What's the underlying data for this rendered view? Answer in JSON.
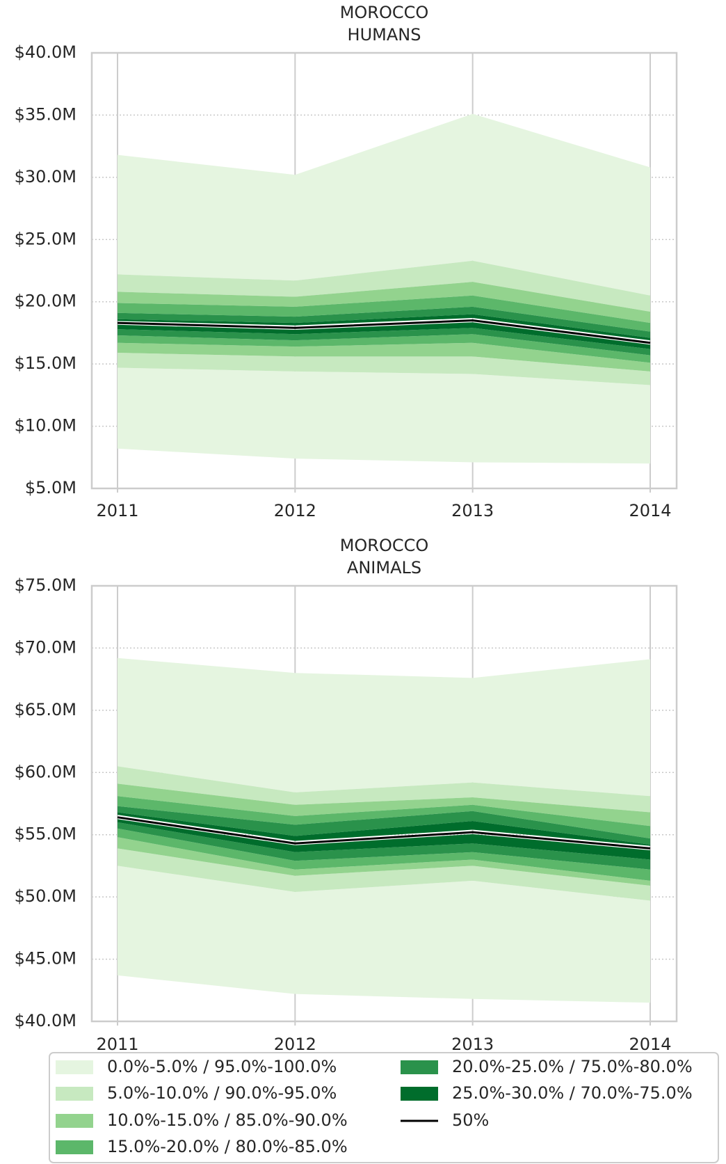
{
  "chart_data": [
    {
      "type": "fan",
      "title": [
        "MOROCCO",
        "HUMANS"
      ],
      "categories": [
        "2011",
        "2012",
        "2013",
        "2014"
      ],
      "ylim": [
        5,
        40
      ],
      "yticks": [
        {
          "value": 5,
          "label": "$5.0M"
        },
        {
          "value": 10,
          "label": "$10.0M"
        },
        {
          "value": 15,
          "label": "$15.0M"
        },
        {
          "value": 20,
          "label": "$20.0M"
        },
        {
          "value": 25,
          "label": "$25.0M"
        },
        {
          "value": 30,
          "label": "$30.0M"
        },
        {
          "value": 35,
          "label": "$35.0M"
        },
        {
          "value": 40,
          "label": "$40.0M"
        }
      ],
      "grid": true,
      "bands": [
        {
          "lower": [
            [
              8.2,
              14.7
            ],
            [
              7.4,
              14.4
            ],
            [
              7.1,
              14.2
            ],
            [
              7.0,
              13.3
            ]
          ],
          "upper": [
            [
              22.2,
              31.8
            ],
            [
              21.7,
              30.2
            ],
            [
              23.3,
              35.1
            ],
            [
              20.5,
              30.8
            ]
          ]
        },
        {
          "lower": [
            [
              14.7,
              15.9
            ],
            [
              14.4,
              15.6
            ],
            [
              14.2,
              15.6
            ],
            [
              13.3,
              14.4
            ]
          ],
          "upper": [
            [
              20.8,
              22.2
            ],
            [
              20.4,
              21.7
            ],
            [
              21.6,
              23.3
            ],
            [
              19.2,
              20.5
            ]
          ]
        },
        {
          "lower": [
            [
              15.9,
              16.7
            ],
            [
              15.6,
              16.4
            ],
            [
              15.6,
              16.7
            ],
            [
              14.4,
              15.1
            ]
          ],
          "upper": [
            [
              19.9,
              20.8
            ],
            [
              19.6,
              20.4
            ],
            [
              20.5,
              21.6
            ],
            [
              18.3,
              19.2
            ]
          ]
        },
        {
          "lower": [
            [
              16.7,
              17.3
            ],
            [
              16.4,
              16.9
            ],
            [
              16.7,
              17.4
            ],
            [
              15.1,
              15.7
            ]
          ],
          "upper": [
            [
              19.1,
              19.9
            ],
            [
              18.8,
              19.6
            ],
            [
              19.6,
              20.5
            ],
            [
              17.6,
              18.3
            ]
          ]
        },
        {
          "lower": [
            [
              17.3,
              17.8
            ],
            [
              16.9,
              17.4
            ],
            [
              17.4,
              17.9
            ],
            [
              15.7,
              16.2
            ]
          ],
          "upper": [
            [
              18.6,
              19.1
            ],
            [
              18.3,
              18.8
            ],
            [
              19.0,
              19.6
            ],
            [
              17.1,
              17.6
            ]
          ]
        },
        {
          "lower": [
            [
              17.8,
              18.15
            ],
            [
              17.4,
              17.75
            ],
            [
              17.9,
              18.35
            ],
            [
              16.2,
              16.55
            ]
          ],
          "upper": [
            [
              18.45,
              18.6
            ],
            [
              18.1,
              18.3
            ],
            [
              18.7,
              19.0
            ],
            [
              16.9,
              17.1
            ]
          ]
        }
      ],
      "median": [
        18.3,
        17.9,
        18.5,
        16.7
      ]
    },
    {
      "type": "fan",
      "title": [
        "MOROCCO",
        "ANIMALS"
      ],
      "categories": [
        "2011",
        "2012",
        "2013",
        "2014"
      ],
      "ylim": [
        40,
        75
      ],
      "yticks": [
        {
          "value": 40,
          "label": "$40.0M"
        },
        {
          "value": 45,
          "label": "$45.0M"
        },
        {
          "value": 50,
          "label": "$50.0M"
        },
        {
          "value": 55,
          "label": "$55.0M"
        },
        {
          "value": 60,
          "label": "$60.0M"
        },
        {
          "value": 65,
          "label": "$65.0M"
        },
        {
          "value": 70,
          "label": "$70.0M"
        },
        {
          "value": 75,
          "label": "$75.0M"
        }
      ],
      "grid": true,
      "bands": [
        {
          "lower": [
            [
              43.7,
              52.5
            ],
            [
              42.2,
              50.4
            ],
            [
              41.8,
              51.3
            ],
            [
              41.5,
              49.7
            ]
          ],
          "upper": [
            [
              60.5,
              69.2
            ],
            [
              58.4,
              68.0
            ],
            [
              59.2,
              67.6
            ],
            [
              58.1,
              69.1
            ]
          ]
        },
        {
          "lower": [
            [
              52.5,
              53.9
            ],
            [
              50.4,
              51.7
            ],
            [
              51.3,
              52.5
            ],
            [
              49.7,
              50.9
            ]
          ],
          "upper": [
            [
              59.1,
              60.5
            ],
            [
              57.4,
              58.4
            ],
            [
              58.0,
              59.2
            ],
            [
              56.8,
              58.1
            ]
          ]
        },
        {
          "lower": [
            [
              53.9,
              54.8
            ],
            [
              51.7,
              52.2
            ],
            [
              52.5,
              53.0
            ],
            [
              50.9,
              51.3
            ]
          ],
          "upper": [
            [
              58.1,
              59.1
            ],
            [
              56.5,
              57.4
            ],
            [
              57.4,
              58.0
            ],
            [
              55.7,
              56.8
            ]
          ]
        },
        {
          "lower": [
            [
              54.8,
              55.5
            ],
            [
              52.2,
              52.9
            ],
            [
              53.0,
              53.6
            ],
            [
              51.3,
              52.2
            ]
          ],
          "upper": [
            [
              57.3,
              58.1
            ],
            [
              55.8,
              56.5
            ],
            [
              56.9,
              57.4
            ],
            [
              54.7,
              55.7
            ]
          ]
        },
        {
          "lower": [
            [
              55.5,
              56.0
            ],
            [
              52.9,
              53.6
            ],
            [
              53.6,
              54.3
            ],
            [
              52.2,
              53.0
            ]
          ],
          "upper": [
            [
              56.8,
              57.3
            ],
            [
              54.9,
              55.8
            ],
            [
              56.1,
              56.9
            ],
            [
              54.2,
              54.7
            ]
          ]
        },
        {
          "lower": [
            [
              56.0,
              56.25
            ],
            [
              53.6,
              54.15
            ],
            [
              54.3,
              55.05
            ],
            [
              53.0,
              53.75
            ]
          ],
          "upper": [
            [
              56.6,
              56.8
            ],
            [
              54.5,
              54.9
            ],
            [
              55.4,
              56.1
            ],
            [
              54.1,
              54.2
            ]
          ]
        }
      ],
      "median": [
        56.4,
        54.3,
        55.2,
        53.9
      ]
    }
  ],
  "legend": {
    "entries": [
      {
        "name": "0.0%-5.0% / 95.0%-100.0%",
        "color": "#e5f5e0"
      },
      {
        "name": "5.0%-10.0% / 90.0%-95.0%",
        "color": "#c7e9c0"
      },
      {
        "name": "10.0%-15.0% / 85.0%-90.0%",
        "color": "#93d38e"
      },
      {
        "name": "15.0%-20.0% / 80.0%-85.0%",
        "color": "#5cb76a"
      },
      {
        "name": "20.0%-25.0% / 75.0%-80.0%",
        "color": "#2a924b"
      },
      {
        "name": "25.0%-30.0% / 70.0%-75.0%",
        "color": "#006d2c"
      }
    ],
    "median": {
      "name": "50%",
      "color": "#000000"
    }
  }
}
